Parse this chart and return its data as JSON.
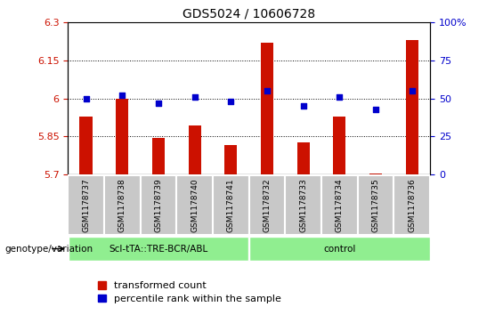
{
  "title": "GDS5024 / 10606728",
  "samples": [
    "GSM1178737",
    "GSM1178738",
    "GSM1178739",
    "GSM1178740",
    "GSM1178741",
    "GSM1178732",
    "GSM1178733",
    "GSM1178734",
    "GSM1178735",
    "GSM1178736"
  ],
  "transformed_count": [
    5.93,
    6.0,
    5.845,
    5.895,
    5.815,
    6.22,
    5.825,
    5.93,
    5.705,
    6.23
  ],
  "percentile_rank": [
    50,
    52,
    47,
    51,
    48,
    55,
    45,
    51,
    43,
    55
  ],
  "group1_label": "Scl-tTA::TRE-BCR/ABL",
  "group1_count": 5,
  "group2_label": "control",
  "group2_count": 5,
  "ylim_left": [
    5.7,
    6.3
  ],
  "ylim_right": [
    0,
    100
  ],
  "yticks_left": [
    5.7,
    5.85,
    6.0,
    6.15,
    6.3
  ],
  "ytick_labels_left": [
    "5.7",
    "5.85",
    "6",
    "6.15",
    "6.3"
  ],
  "yticks_right": [
    0,
    25,
    50,
    75,
    100
  ],
  "ytick_labels_right": [
    "0",
    "25",
    "50",
    "75",
    "100%"
  ],
  "hlines": [
    5.85,
    6.0,
    6.15
  ],
  "bar_color": "#cc1100",
  "dot_color": "#0000cc",
  "bar_width": 0.35,
  "group1_bg": "#90ee90",
  "group2_bg": "#90ee90",
  "label_bar": "transformed count",
  "label_dot": "percentile rank within the sample",
  "left_tick_color": "#cc1100",
  "right_tick_color": "#0000cc",
  "sample_box_color": "#c8c8c8",
  "background_color": "#ffffff"
}
